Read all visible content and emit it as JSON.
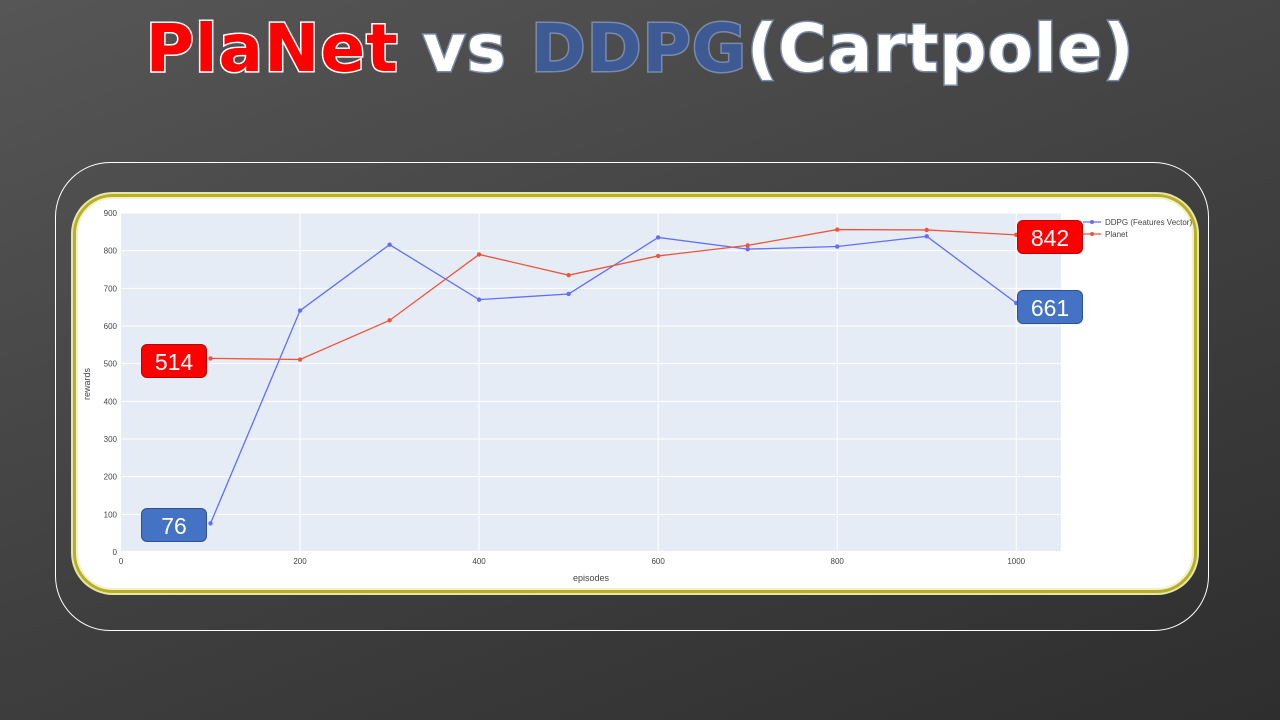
{
  "slide": {
    "title_parts": [
      "PlaNet",
      " vs ",
      "DDPG",
      "(Cartpole)"
    ]
  },
  "chart_data": {
    "type": "line",
    "title": "",
    "xlabel": "episodes",
    "ylabel": "rewards",
    "xlim": [
      0,
      1050
    ],
    "ylim": [
      0,
      900
    ],
    "xticks": [
      0,
      200,
      400,
      600,
      800,
      1000
    ],
    "yticks": [
      0,
      100,
      200,
      300,
      400,
      500,
      600,
      700,
      800,
      900
    ],
    "grid": true,
    "legend_position": "top-right",
    "x": [
      100,
      200,
      300,
      400,
      500,
      600,
      700,
      800,
      900,
      1000
    ],
    "series": [
      {
        "name": "DDPG (Features Vector)",
        "color": "#636efa",
        "values": [
          76,
          641,
          816,
          670,
          685,
          835,
          804,
          811,
          838,
          661
        ]
      },
      {
        "name": "Planet",
        "color": "#ef553b",
        "values": [
          514,
          511,
          615,
          790,
          735,
          786,
          814,
          856,
          855,
          842
        ]
      }
    ]
  },
  "callouts": [
    {
      "text": "514",
      "color": "red"
    },
    {
      "text": "76",
      "color": "blue"
    },
    {
      "text": "842",
      "color": "red"
    },
    {
      "text": "661",
      "color": "blue"
    }
  ]
}
